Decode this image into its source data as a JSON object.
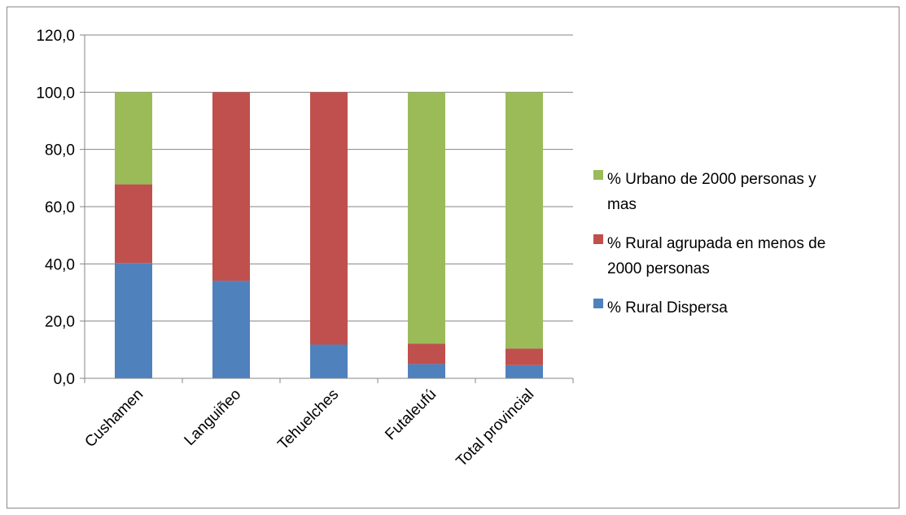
{
  "chart_data": {
    "type": "bar",
    "stacked": true,
    "title": "",
    "xlabel": "",
    "ylabel": "",
    "ylim": [
      0,
      120
    ],
    "yticks": [
      0,
      20,
      40,
      60,
      80,
      100,
      120
    ],
    "ytick_labels": [
      "0,0",
      "20,0",
      "40,0",
      "60,0",
      "80,0",
      "100,0",
      "120,0"
    ],
    "grid": true,
    "legend_position": "right",
    "categories": [
      "Cushamen",
      "Languiñeo",
      "Tehuelches",
      "Futaleufú",
      "Total provincial"
    ],
    "series": [
      {
        "name": "% Rural Dispersa",
        "color": "#4f81bd",
        "values": [
          40.3,
          34.1,
          11.8,
          5.0,
          4.6
        ]
      },
      {
        "name": "% Rural agrupada en menos de 2000 personas",
        "color": "#c0504d",
        "values": [
          27.5,
          65.9,
          88.2,
          7.1,
          5.8
        ]
      },
      {
        "name": "% Urbano de 2000 personas y mas",
        "color": "#9bbb59",
        "values": [
          32.2,
          0.0,
          0.0,
          87.9,
          89.6
        ]
      }
    ],
    "legend": [
      {
        "lines": [
          "% Urbano de 2000 personas y",
          "mas"
        ],
        "color": "#9bbb59"
      },
      {
        "lines": [
          "% Rural agrupada en menos de",
          "2000 personas"
        ],
        "color": "#c0504d"
      },
      {
        "lines": [
          "% Rural Dispersa"
        ],
        "color": "#4f81bd"
      }
    ]
  }
}
